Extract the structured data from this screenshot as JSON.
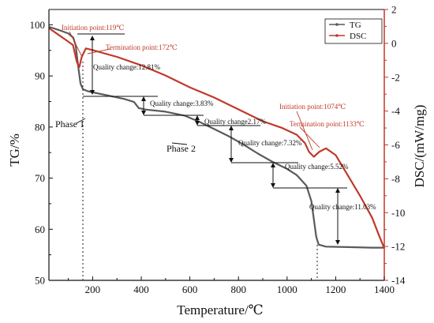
{
  "chart_data": {
    "type": "line",
    "xlabel": "Temperature/℃",
    "ylabel_left": "TG/%",
    "ylabel_right": "DSC/(mW/mg)",
    "xlim": [
      20,
      1400
    ],
    "ylim_left": [
      50,
      103
    ],
    "ylim_right": [
      -14,
      2
    ],
    "x_ticks": [
      200,
      400,
      600,
      800,
      1000,
      1200,
      1400
    ],
    "y_left_ticks": [
      50,
      60,
      70,
      80,
      90,
      100
    ],
    "y_right_ticks": [
      2,
      0,
      -2,
      -4,
      -6,
      -8,
      -10,
      -12,
      -14
    ],
    "legend": {
      "position": "top-right",
      "entries": [
        "TG",
        "DSC"
      ]
    },
    "grid": false,
    "series": [
      {
        "name": "TG",
        "axis": "left",
        "color": "#5a5a5a",
        "points": [
          [
            20,
            99.6
          ],
          [
            60,
            99.0
          ],
          [
            100,
            98.3
          ],
          [
            120,
            97.5
          ],
          [
            130,
            96.0
          ],
          [
            140,
            92.0
          ],
          [
            150,
            88.5
          ],
          [
            160,
            87.4
          ],
          [
            180,
            87.0
          ],
          [
            250,
            86.3
          ],
          [
            330,
            85.5
          ],
          [
            370,
            84.9
          ],
          [
            390,
            83.7
          ],
          [
            420,
            83.4
          ],
          [
            500,
            83.0
          ],
          [
            580,
            82.2
          ],
          [
            640,
            81.0
          ],
          [
            700,
            79.6
          ],
          [
            760,
            78.2
          ],
          [
            820,
            76.6
          ],
          [
            880,
            74.8
          ],
          [
            940,
            73.2
          ],
          [
            1000,
            71.8
          ],
          [
            1040,
            70.6
          ],
          [
            1080,
            68.5
          ],
          [
            1100,
            65.5
          ],
          [
            1110,
            62.0
          ],
          [
            1120,
            58.5
          ],
          [
            1130,
            57.0
          ],
          [
            1160,
            56.6
          ],
          [
            1250,
            56.5
          ],
          [
            1350,
            56.4
          ],
          [
            1400,
            56.4
          ]
        ]
      },
      {
        "name": "DSC",
        "axis": "right",
        "color": "#c0392b",
        "points": [
          [
            20,
            0.9
          ],
          [
            60,
            0.5
          ],
          [
            90,
            0.2
          ],
          [
            119,
            -0.1
          ],
          [
            135,
            -1.1
          ],
          [
            145,
            -1.4
          ],
          [
            155,
            -0.8
          ],
          [
            172,
            -0.3
          ],
          [
            200,
            -0.4
          ],
          [
            300,
            -0.8
          ],
          [
            400,
            -1.3
          ],
          [
            500,
            -1.9
          ],
          [
            600,
            -2.6
          ],
          [
            700,
            -3.2
          ],
          [
            800,
            -3.9
          ],
          [
            900,
            -4.6
          ],
          [
            980,
            -5.0
          ],
          [
            1040,
            -5.4
          ],
          [
            1074,
            -5.9
          ],
          [
            1090,
            -6.4
          ],
          [
            1110,
            -6.7
          ],
          [
            1133,
            -6.4
          ],
          [
            1160,
            -6.2
          ],
          [
            1200,
            -6.6
          ],
          [
            1250,
            -7.8
          ],
          [
            1300,
            -9.0
          ],
          [
            1350,
            -10.3
          ],
          [
            1380,
            -11.4
          ],
          [
            1400,
            -12.1
          ]
        ]
      }
    ],
    "annotations": {
      "initiation1": "Initiation point:119℃",
      "termination1": "Termination point:172℃",
      "initiation2": "Initiation point:1074℃",
      "termination2": "Termination point:1133℃",
      "qc1": "Quality change:12.81%",
      "qc2": "Quality change:3.83%",
      "qc3": "Quality change2.17%",
      "qc4": "Quality change:7.32%",
      "qc5": "Quality change:5.52%",
      "qc6": "Quality change:11.03%",
      "phase1": "Phase 1",
      "phase2": "Phase 2"
    }
  }
}
